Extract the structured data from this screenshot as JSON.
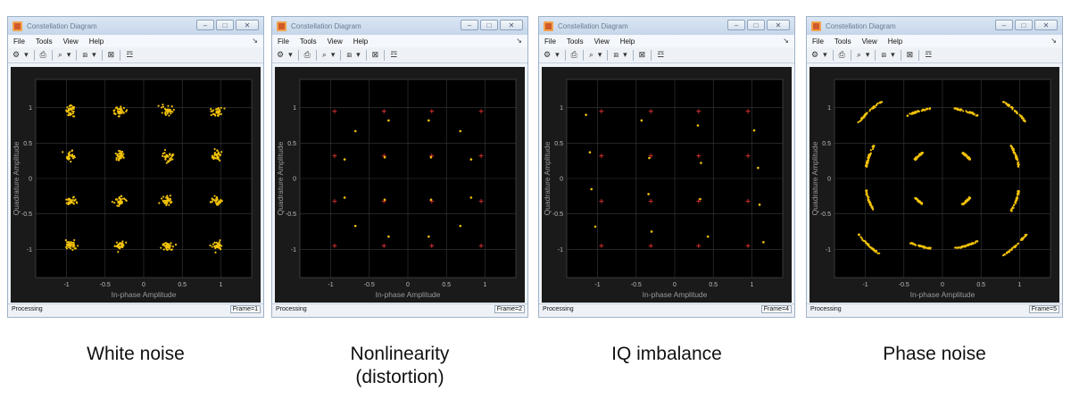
{
  "windows": [
    {
      "id": "white-noise",
      "title": "Constellation Diagram",
      "menu": [
        "File",
        "Tools",
        "View",
        "Help"
      ],
      "status": "Processing",
      "frame": "Frame=1",
      "caption": "White noise",
      "chart_data": {
        "type": "scatter",
        "xlabel": "In-phase Amplitude",
        "ylabel": "Quadrature Amplitude",
        "xlim": [
          -1.4,
          1.4
        ],
        "ylim": [
          -1.4,
          1.4
        ],
        "xticks": [
          -1,
          -0.5,
          0,
          0.5,
          1
        ],
        "yticks": [
          -1,
          -0.5,
          0,
          0.5,
          1
        ],
        "xtick_labels": [
          "-1",
          "-0.5",
          "0",
          "0.5",
          "1"
        ],
        "ytick_labels": [
          "-1",
          "-0.5",
          "0",
          "0.5",
          "1"
        ],
        "grid": true,
        "reference": [],
        "signal_color": "#f2c20a",
        "reference_color": "#e03030",
        "signal": [
          [
            -0.95,
            0.95
          ],
          [
            -0.31,
            0.95
          ],
          [
            0.31,
            0.95
          ],
          [
            0.95,
            0.95
          ],
          [
            -0.95,
            0.32
          ],
          [
            -0.31,
            0.32
          ],
          [
            0.31,
            0.32
          ],
          [
            0.95,
            0.32
          ],
          [
            -0.95,
            -0.32
          ],
          [
            -0.31,
            -0.32
          ],
          [
            0.31,
            -0.32
          ],
          [
            0.95,
            -0.32
          ],
          [
            -0.95,
            -0.95
          ],
          [
            -0.31,
            -0.95
          ],
          [
            0.31,
            -0.95
          ],
          [
            0.95,
            -0.95
          ]
        ],
        "impairment": {
          "kind": "noise",
          "sigma": 0.035
        }
      }
    },
    {
      "id": "nonlinearity",
      "title": "Constellation Diagram",
      "menu": [
        "File",
        "Tools",
        "View",
        "Help"
      ],
      "status": "Processing",
      "frame": "Frame=2",
      "caption": "Nonlinearity\n(distortion)",
      "chart_data": {
        "type": "scatter",
        "xlabel": "In-phase Amplitude",
        "ylabel": "Quadrature Amplitude",
        "xlim": [
          -1.4,
          1.4
        ],
        "ylim": [
          -1.4,
          1.4
        ],
        "xticks": [
          -1,
          -0.5,
          0,
          0.5,
          1
        ],
        "yticks": [
          -1,
          -0.5,
          0,
          0.5,
          1
        ],
        "xtick_labels": [
          "-1",
          "-0.5",
          "0",
          "0.5",
          "1"
        ],
        "ytick_labels": [
          "-1",
          "-0.5",
          "0",
          "0.5",
          "1"
        ],
        "grid": true,
        "signal_color": "#f2c20a",
        "reference_color": "#e03030",
        "reference": [
          [
            -0.95,
            0.95
          ],
          [
            -0.31,
            0.95
          ],
          [
            0.31,
            0.95
          ],
          [
            0.95,
            0.95
          ],
          [
            -0.95,
            0.32
          ],
          [
            -0.31,
            0.32
          ],
          [
            0.31,
            0.32
          ],
          [
            0.95,
            0.32
          ],
          [
            -0.95,
            -0.32
          ],
          [
            -0.31,
            -0.32
          ],
          [
            0.31,
            -0.32
          ],
          [
            0.95,
            -0.32
          ],
          [
            -0.95,
            -0.95
          ],
          [
            -0.31,
            -0.95
          ],
          [
            0.31,
            -0.95
          ],
          [
            0.95,
            -0.95
          ]
        ],
        "signal": [
          [
            -0.68,
            0.67
          ],
          [
            -0.25,
            0.82
          ],
          [
            0.27,
            0.82
          ],
          [
            0.68,
            0.67
          ],
          [
            -0.82,
            0.27
          ],
          [
            -0.3,
            0.3
          ],
          [
            0.3,
            0.3
          ],
          [
            0.82,
            0.27
          ],
          [
            -0.82,
            -0.27
          ],
          [
            -0.3,
            -0.3
          ],
          [
            0.3,
            -0.3
          ],
          [
            0.82,
            -0.27
          ],
          [
            -0.68,
            -0.67
          ],
          [
            -0.25,
            -0.82
          ],
          [
            0.27,
            -0.82
          ],
          [
            0.68,
            -0.67
          ]
        ],
        "impairment": {
          "kind": "none"
        }
      }
    },
    {
      "id": "iq-imbalance",
      "title": "Constellation Diagram",
      "menu": [
        "File",
        "Tools",
        "View",
        "Help"
      ],
      "status": "Processing",
      "frame": "Frame=4",
      "caption": "IQ imbalance",
      "chart_data": {
        "type": "scatter",
        "xlabel": "In-phase Amplitude",
        "ylabel": "Quadrature Amplitude",
        "xlim": [
          -1.4,
          1.4
        ],
        "ylim": [
          -1.4,
          1.4
        ],
        "xticks": [
          -1,
          -0.5,
          0,
          0.5,
          1
        ],
        "yticks": [
          -1,
          -0.5,
          0,
          0.5,
          1
        ],
        "xtick_labels": [
          "-1",
          "-0.5",
          "0",
          "0.5",
          "1"
        ],
        "ytick_labels": [
          "-1",
          "-0.5",
          "0",
          "0.5",
          "1"
        ],
        "grid": true,
        "signal_color": "#f2c20a",
        "reference_color": "#e03030",
        "reference": [
          [
            -0.95,
            0.95
          ],
          [
            -0.31,
            0.95
          ],
          [
            0.31,
            0.95
          ],
          [
            0.95,
            0.95
          ],
          [
            -0.95,
            0.32
          ],
          [
            -0.31,
            0.32
          ],
          [
            0.31,
            0.32
          ],
          [
            0.95,
            0.32
          ],
          [
            -0.95,
            -0.32
          ],
          [
            -0.31,
            -0.32
          ],
          [
            0.31,
            -0.32
          ],
          [
            0.95,
            -0.32
          ],
          [
            -0.95,
            -0.95
          ],
          [
            -0.31,
            -0.95
          ],
          [
            0.31,
            -0.95
          ],
          [
            0.95,
            -0.95
          ]
        ],
        "signal": [
          [
            -1.15,
            0.9
          ],
          [
            -0.43,
            0.82
          ],
          [
            0.3,
            0.75
          ],
          [
            1.03,
            0.68
          ],
          [
            -1.1,
            0.37
          ],
          [
            -0.33,
            0.29
          ],
          [
            0.34,
            0.22
          ],
          [
            1.08,
            0.15
          ],
          [
            -1.08,
            -0.15
          ],
          [
            -0.34,
            -0.22
          ],
          [
            0.33,
            -0.29
          ],
          [
            1.1,
            -0.37
          ],
          [
            -1.03,
            -0.68
          ],
          [
            -0.3,
            -0.75
          ],
          [
            0.43,
            -0.82
          ],
          [
            1.15,
            -0.9
          ]
        ],
        "impairment": {
          "kind": "none"
        }
      }
    },
    {
      "id": "phase-noise",
      "title": "Constellation Diagram",
      "menu": [
        "File",
        "Tools",
        "View",
        "Help"
      ],
      "status": "Processing",
      "frame": "Frame=5",
      "caption": "Phase noise",
      "chart_data": {
        "type": "scatter",
        "xlabel": "In-phase Amplitude",
        "ylabel": "Quadrature Amplitude",
        "xlim": [
          -1.4,
          1.4
        ],
        "ylim": [
          -1.4,
          1.4
        ],
        "xticks": [
          -1,
          -0.5,
          0,
          0.5,
          1
        ],
        "yticks": [
          -1,
          -0.5,
          0,
          0.5,
          1
        ],
        "xtick_labels": [
          "-1",
          "-0.5",
          "0",
          "0.5",
          "1"
        ],
        "ytick_labels": [
          "-1",
          "-0.5",
          "0",
          "0.5",
          "1"
        ],
        "grid": true,
        "reference": [],
        "signal_color": "#f2c20a",
        "reference_color": "#e03030",
        "signal": [
          [
            -0.95,
            0.95
          ],
          [
            -0.31,
            0.95
          ],
          [
            0.31,
            0.95
          ],
          [
            0.95,
            0.95
          ],
          [
            -0.95,
            0.32
          ],
          [
            -0.31,
            0.32
          ],
          [
            0.31,
            0.32
          ],
          [
            0.95,
            0.32
          ],
          [
            -0.95,
            -0.32
          ],
          [
            -0.31,
            -0.32
          ],
          [
            0.31,
            -0.32
          ],
          [
            0.95,
            -0.32
          ],
          [
            -0.95,
            -0.95
          ],
          [
            -0.31,
            -0.95
          ],
          [
            0.31,
            -0.95
          ],
          [
            0.95,
            -0.95
          ]
        ],
        "impairment": {
          "kind": "phase",
          "spread_rad": 0.16
        }
      }
    }
  ]
}
